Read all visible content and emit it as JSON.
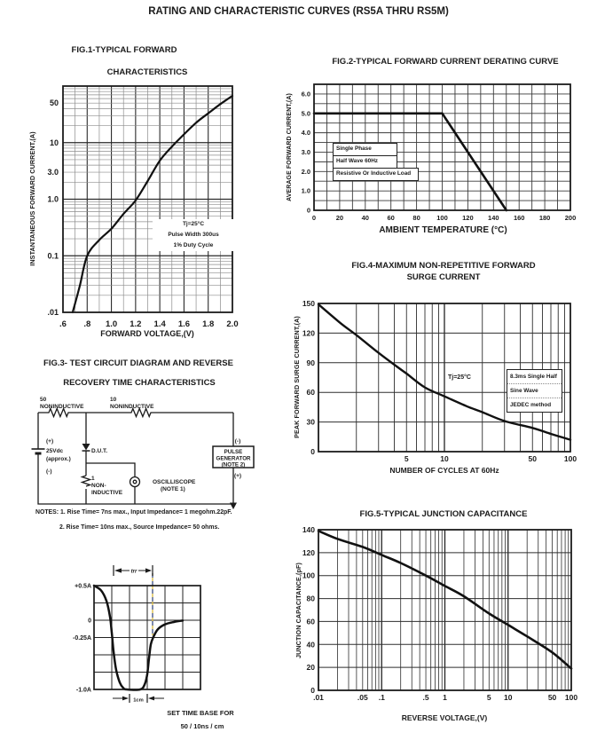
{
  "page": {
    "title": "RATING AND CHARACTERISTIC CURVES (RS5A THRU RS5M)",
    "ink": "#1b1b1b",
    "background": "#ffffff",
    "dashed_line_colors": {
      "blue": "#3f57a0",
      "yellow": "#d9b93f"
    }
  },
  "chart_data": [
    {
      "id": "fig1",
      "type": "line",
      "title_lines": [
        "FIG.1-TYPICAL FORWARD",
        "CHARACTERISTICS"
      ],
      "xlabel": "FORWARD VOLTAGE,(V)",
      "ylabel": "INSTANTANEOUS FORWARD CURRENT,(A)",
      "xscale": "linear",
      "yscale": "log",
      "xlim": [
        0.6,
        2.0
      ],
      "ylim": [
        0.01,
        100
      ],
      "xgrid_minor": 0.1,
      "xgrid_major": 0.2,
      "xticks": [
        [
          0.6,
          ".6"
        ],
        [
          0.8,
          ".8"
        ],
        [
          1.0,
          "1.0"
        ],
        [
          1.2,
          "1.2"
        ],
        [
          1.4,
          "1.4"
        ],
        [
          1.6,
          "1.6"
        ],
        [
          1.8,
          "1.8"
        ],
        [
          2.0,
          "2.0"
        ]
      ],
      "yticks": [
        [
          50,
          "50"
        ],
        [
          10,
          "10"
        ],
        [
          3,
          "3.0"
        ],
        [
          1,
          "1.0"
        ],
        [
          0.1,
          "0.1"
        ],
        [
          0.01,
          ".01"
        ]
      ],
      "annotation": [
        "Tj=25°C",
        "Pulse Width 300us",
        "1% Duty Cycle"
      ],
      "curve": [
        [
          0.68,
          0.01
        ],
        [
          0.74,
          0.03
        ],
        [
          0.8,
          0.1
        ],
        [
          0.9,
          0.19
        ],
        [
          1.0,
          0.3
        ],
        [
          1.1,
          0.55
        ],
        [
          1.2,
          0.95
        ],
        [
          1.3,
          2.1
        ],
        [
          1.4,
          4.8
        ],
        [
          1.5,
          8.5
        ],
        [
          1.6,
          14
        ],
        [
          1.7,
          22.5
        ],
        [
          1.8,
          33
        ],
        [
          1.9,
          48
        ],
        [
          2.0,
          67
        ]
      ]
    },
    {
      "id": "fig2",
      "type": "line",
      "title_lines": [
        "FIG.2-TYPICAL FORWARD CURRENT DERATING CURVE"
      ],
      "xlabel": "AMBIENT TEMPERATURE (°C)",
      "ylabel": "AVERAGE FORWARD CURRENT,(A)",
      "xscale": "linear",
      "yscale": "linear",
      "xlim": [
        0,
        200
      ],
      "ylim": [
        0,
        6.5
      ],
      "xgrid_minor": 10,
      "ygrid_minor": 0.5,
      "xticks": [
        [
          0,
          "0"
        ],
        [
          20,
          "20"
        ],
        [
          40,
          "40"
        ],
        [
          60,
          "60"
        ],
        [
          80,
          "80"
        ],
        [
          100,
          "100"
        ],
        [
          120,
          "120"
        ],
        [
          140,
          "140"
        ],
        [
          160,
          "160"
        ],
        [
          180,
          "180"
        ],
        [
          200,
          "200"
        ]
      ],
      "yticks": [
        [
          6,
          "6.0"
        ],
        [
          5,
          "5.0"
        ],
        [
          4,
          "4.0"
        ],
        [
          3,
          "3.0"
        ],
        [
          2,
          "2.0"
        ],
        [
          1,
          "1.0"
        ],
        [
          0,
          "0"
        ]
      ],
      "annotations": [
        "Single Phase",
        "Half Wave 60Hz",
        "Resistive Or Inductive Load"
      ],
      "curve": [
        [
          0,
          5
        ],
        [
          100,
          5
        ],
        [
          150,
          0
        ]
      ]
    },
    {
      "id": "fig4",
      "type": "line",
      "title_lines": [
        "FIG.4-MAXIMUM NON-REPETITIVE FORWARD",
        "SURGE CURRENT"
      ],
      "xlabel": "NUMBER OF CYCLES AT 60Hz",
      "ylabel": "PEAK FORWARD SURGE CURRENT,(A)",
      "xscale": "log",
      "yscale": "linear",
      "xlim": [
        1,
        100
      ],
      "ylim": [
        0,
        150
      ],
      "ygrid_major": 30,
      "xticks": [
        [
          5,
          "5"
        ],
        [
          10,
          "10"
        ],
        [
          50,
          "50"
        ],
        [
          100,
          "100"
        ]
      ],
      "yticks": [
        [
          0,
          "0"
        ],
        [
          30,
          "30"
        ],
        [
          60,
          "60"
        ],
        [
          90,
          "90"
        ],
        [
          120,
          "120"
        ],
        [
          150,
          "150"
        ]
      ],
      "annotation": "Tj=25°C",
      "note_box": [
        "8.3ms Single Half",
        "Sine Wave",
        "JEDEC method"
      ],
      "curve": [
        [
          1,
          149
        ],
        [
          1.5,
          130
        ],
        [
          2,
          118
        ],
        [
          3,
          100
        ],
        [
          4,
          88
        ],
        [
          5,
          79
        ],
        [
          7,
          65
        ],
        [
          10,
          56
        ],
        [
          15,
          46
        ],
        [
          20,
          40
        ],
        [
          30,
          31
        ],
        [
          50,
          24
        ],
        [
          70,
          18
        ],
        [
          100,
          12
        ]
      ]
    },
    {
      "id": "fig5",
      "type": "line",
      "title_lines": [
        "FIG.5-TYPICAL JUNCTION CAPACITANCE"
      ],
      "xlabel": "REVERSE VOLTAGE,(V)",
      "ylabel": "JUNCTION CAPACITANCE,(pF)",
      "xscale": "log",
      "yscale": "linear",
      "xlim": [
        0.01,
        100
      ],
      "ylim": [
        0,
        140
      ],
      "ygrid_major": 20,
      "xticks": [
        [
          0.01,
          ".01"
        ],
        [
          0.05,
          ".05"
        ],
        [
          0.1,
          ".1"
        ],
        [
          0.5,
          ".5"
        ],
        [
          1,
          "1"
        ],
        [
          5,
          "5"
        ],
        [
          10,
          "10"
        ],
        [
          50,
          "50"
        ],
        [
          100,
          "100"
        ]
      ],
      "yticks": [
        [
          0,
          "0"
        ],
        [
          20,
          "20"
        ],
        [
          40,
          "40"
        ],
        [
          60,
          "60"
        ],
        [
          80,
          "80"
        ],
        [
          100,
          "100"
        ],
        [
          120,
          "120"
        ],
        [
          140,
          "140"
        ]
      ],
      "curve": [
        [
          0.01,
          139
        ],
        [
          0.02,
          132
        ],
        [
          0.05,
          125
        ],
        [
          0.1,
          118
        ],
        [
          0.2,
          111
        ],
        [
          0.5,
          100
        ],
        [
          1,
          91
        ],
        [
          2,
          82
        ],
        [
          5,
          67
        ],
        [
          10,
          57
        ],
        [
          20,
          47
        ],
        [
          50,
          33
        ],
        [
          100,
          19
        ]
      ]
    },
    {
      "id": "reverse-recovery-waveform",
      "type": "line",
      "grid_cols": 6,
      "grid_rows": 6,
      "y_ticks": [
        [
          "+0.5A",
          0.5
        ],
        [
          "0",
          0
        ],
        [
          "-0.25A",
          -0.25
        ],
        [
          "-1.0A",
          -1.0
        ]
      ],
      "trr_label": "trr",
      "cm_label": "1cm",
      "captions": [
        "SET TIME BASE FOR",
        "50 / 10ns / cm"
      ],
      "x_range_cm": [
        0,
        6
      ],
      "y_range_amps": [
        0.5,
        -1.0
      ],
      "dashed_line_cm": 3.3,
      "curve": [
        [
          0,
          0.5
        ],
        [
          0.4,
          0.43
        ],
        [
          0.7,
          0.28
        ],
        [
          0.9,
          0.05
        ],
        [
          1.0,
          -0.18
        ],
        [
          1.1,
          -0.45
        ],
        [
          1.25,
          -0.72
        ],
        [
          1.45,
          -0.9
        ],
        [
          1.65,
          -0.98
        ],
        [
          1.85,
          -1.0
        ],
        [
          2.6,
          -1.0
        ],
        [
          2.85,
          -0.93
        ],
        [
          3.0,
          -0.78
        ],
        [
          3.1,
          -0.55
        ],
        [
          3.2,
          -0.35
        ],
        [
          3.35,
          -0.24
        ],
        [
          3.6,
          -0.13
        ],
        [
          4.0,
          -0.06
        ],
        [
          4.5,
          -0.025
        ],
        [
          5.0,
          -0.005
        ]
      ]
    }
  ],
  "fig3": {
    "title_lines": [
      "FIG.3- TEST CIRCUIT DIAGRAM AND REVERSE",
      "RECOVERY TIME CHARACTERISTICS"
    ],
    "labels": {
      "r1_value": "50",
      "r1_name": "NONINDUCTIVE",
      "r2_value": "10",
      "r2_name": "NONINDUCTIVE",
      "bat_plus": "(+)",
      "bat_v": "25Vdc",
      "bat_approx": "(approx.)",
      "bat_minus": "(-)",
      "dut": "D.U.T.",
      "r3_value": "1",
      "r3_line1": "NON-",
      "r3_line2": "INDUCTIVE",
      "scope_line1": "OSCILLISCOPE",
      "scope_line2": "(NOTE 1)",
      "pg_minus": "(-)",
      "pg_line1": "PULSE",
      "pg_line2": "GENERATOR",
      "pg_line3": "(NOTE 2)",
      "pg_plus": "(+)"
    },
    "notes": [
      "NOTES: 1. Rise Time= 7ns max., Input Impedance= 1 megohm.22pF.",
      "2. Rise Time= 10ns max., Source Impedance= 50 ohms."
    ]
  }
}
